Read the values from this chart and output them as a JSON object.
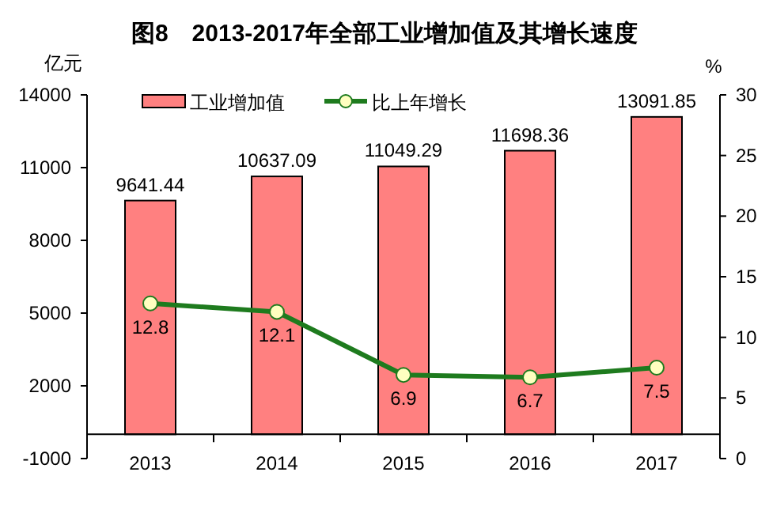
{
  "chart_data": {
    "type": "bar",
    "title": "图8　2013-2017年全部工业增加值及其增长速度",
    "ylabel": "亿元",
    "y2label": "%",
    "categories": [
      "2013",
      "2014",
      "2015",
      "2016",
      "2017"
    ],
    "series": [
      {
        "name": "工业增加值",
        "color": "#ff8080",
        "values": [
          9641.44,
          10637.09,
          11049.29,
          11698.36,
          13091.85
        ]
      },
      {
        "name": "比上年增长",
        "type": "line",
        "axis": "y2",
        "color": "#1e7b1e",
        "values": [
          12.8,
          12.1,
          6.9,
          6.7,
          7.5
        ]
      }
    ],
    "ylim": [
      -1000,
      14000
    ],
    "yticks": [
      -1000,
      2000,
      5000,
      8000,
      11000,
      14000
    ],
    "y2lim": [
      0,
      30
    ],
    "y2ticks": [
      0,
      5,
      10,
      15,
      20,
      25,
      30
    ],
    "data_labels": true,
    "legend": "top",
    "marker": "circle",
    "line_style": "solid",
    "grid": false
  }
}
